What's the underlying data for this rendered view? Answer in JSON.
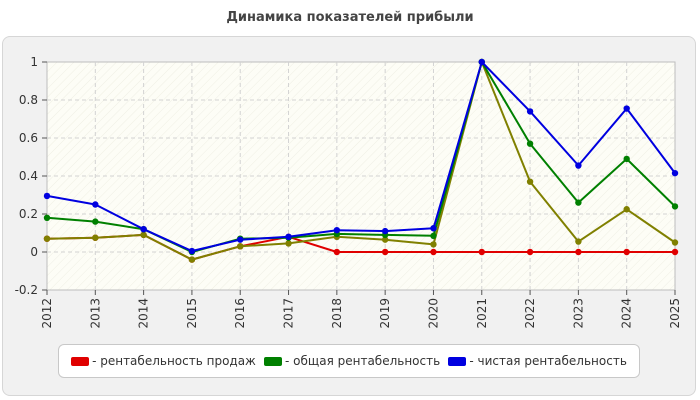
{
  "chart_data": {
    "type": "line",
    "title": "Динамика показателей прибыли",
    "xlabel": "",
    "ylabel": "",
    "categories": [
      "2012",
      "2013",
      "2014",
      "2015",
      "2016",
      "2017",
      "2018",
      "2019",
      "2020",
      "2021",
      "2022",
      "2023",
      "2024",
      "2025"
    ],
    "ylim": [
      -0.2,
      1
    ],
    "yticks": [
      -0.2,
      0,
      0.2,
      0.4,
      0.6,
      0.8,
      1
    ],
    "ytick_labels": [
      "-0.2",
      "0",
      "0.2",
      "0.4",
      "0.6",
      "0.8",
      "1"
    ],
    "grid": true,
    "legend_position": "bottom",
    "series": [
      {
        "name": "- рентабельность продаж",
        "color": "#e00000",
        "values": [
          0.07,
          0.075,
          0.09,
          -0.04,
          0.03,
          0.08,
          0.0,
          0.0,
          0.0,
          0.0,
          0.0,
          0.0,
          0.0,
          0.0
        ]
      },
      {
        "name": "",
        "color": "#808000",
        "values": [
          0.07,
          0.075,
          0.09,
          -0.04,
          0.03,
          0.045,
          0.08,
          0.065,
          0.04,
          1.0,
          0.37,
          0.055,
          0.225,
          0.05
        ]
      },
      {
        "name": "- общая рентабельность",
        "color": "#008000",
        "values": [
          0.18,
          0.16,
          0.12,
          0.0,
          0.07,
          0.075,
          0.095,
          0.09,
          0.085,
          1.0,
          0.57,
          0.26,
          0.49,
          0.24
        ]
      },
      {
        "name": "- чистая рентабельность",
        "color": "#0000e0",
        "values": [
          0.295,
          0.25,
          0.12,
          0.005,
          0.065,
          0.08,
          0.115,
          0.11,
          0.125,
          1.0,
          0.74,
          0.455,
          0.755,
          0.415
        ]
      }
    ],
    "legend": [
      {
        "label": "- рентабельность продаж",
        "color": "#e00000"
      },
      {
        "label": "- общая рентабельность",
        "color": "#008000"
      },
      {
        "label": "- чистая рентабельность",
        "color": "#0000e0"
      }
    ]
  }
}
